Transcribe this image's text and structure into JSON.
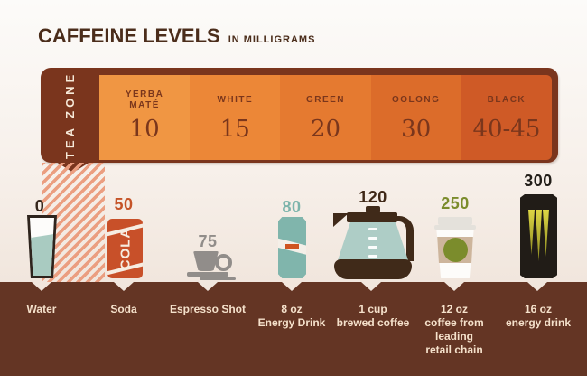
{
  "title": {
    "main": "CAFFEINE LEVELS",
    "sub": "IN MILLIGRAMS"
  },
  "tea_zone": {
    "label": "TEA ZONE",
    "segments": [
      {
        "name": "YERBA\nMATÉ",
        "value": "10",
        "color": "#f09643"
      },
      {
        "name": "WHITE",
        "value": "15",
        "color": "#ec8737"
      },
      {
        "name": "GREEN",
        "value": "20",
        "color": "#e57a30"
      },
      {
        "name": "OOLONG",
        "value": "30",
        "color": "#dc6c2a"
      },
      {
        "name": "BLACK",
        "value": "40-45",
        "color": "#cf5a26"
      }
    ]
  },
  "drinks": [
    {
      "value": "0",
      "label": "Water",
      "icon": "water-glass"
    },
    {
      "value": "50",
      "label": "Soda",
      "icon": "cola-can",
      "can_text": "COLA"
    },
    {
      "value": "75",
      "label": "Espresso Shot",
      "icon": "espresso-cup"
    },
    {
      "value": "80",
      "label": "8 oz\nEnergy Drink",
      "icon": "energy-drink-can"
    },
    {
      "value": "120",
      "label": "1 cup\nbrewed coffee",
      "icon": "coffee-pot"
    },
    {
      "value": "250",
      "label": "12 oz\ncoffee from\nleading\nretail chain",
      "icon": "retail-coffee-cup"
    },
    {
      "value": "300",
      "label": "16 oz\nenergy drink",
      "icon": "large-energy-drink-can"
    }
  ],
  "colors": {
    "banner_brown": "#7a351d",
    "footer_brown": "#643524",
    "hatch_stripe": "#eb9e80",
    "tea_segment_colors": [
      "#f09643",
      "#ec8737",
      "#e57a30",
      "#dc6c2a",
      "#cf5a26"
    ],
    "value_colors": [
      "#35261c",
      "#c55327",
      "#918d8a",
      "#7cb4ab",
      "#3f2817",
      "#7b8c2c",
      "#211d18"
    ]
  },
  "chart_data": {
    "type": "bar",
    "title": "CAFFEINE LEVELS IN MILLIGRAMS",
    "units": "mg",
    "categories": [
      "Water",
      "Soda",
      "Espresso Shot",
      "8 oz Energy Drink",
      "1 cup brewed coffee",
      "12 oz coffee from leading retail chain",
      "16 oz energy drink"
    ],
    "values": [
      0,
      50,
      75,
      80,
      120,
      250,
      300
    ],
    "tea_zone": {
      "categories": [
        "Yerba Maté",
        "White",
        "Green",
        "Oolong",
        "Black"
      ],
      "values": [
        "10",
        "15",
        "20",
        "30",
        "40-45"
      ],
      "note": "tea zone band spans the low end of the scale between Water and Soda"
    },
    "legend_position": "none",
    "grid": false
  }
}
